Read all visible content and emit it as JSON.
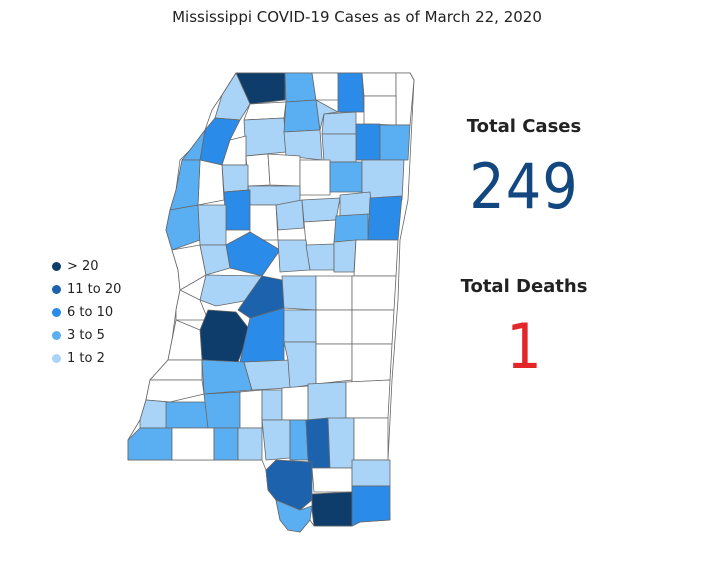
{
  "title": "Mississippi COVID-19 Cases as of March 22, 2020",
  "legend": [
    {
      "label": "> 20",
      "color": "#0e3c6b"
    },
    {
      "label": "11 to 20",
      "color": "#1c62ad"
    },
    {
      "label": "6 to 10",
      "color": "#2b8be8"
    },
    {
      "label": "3 to 5",
      "color": "#5aaff2"
    },
    {
      "label": "1 to 2",
      "color": "#a9d3f7"
    }
  ],
  "stats": {
    "cases_label": "Total Cases",
    "cases_value": "249",
    "deaths_label": "Total Deaths",
    "deaths_value": "1"
  },
  "colors": {
    "no_cases": "#ffffff",
    "border": "#666666"
  }
}
